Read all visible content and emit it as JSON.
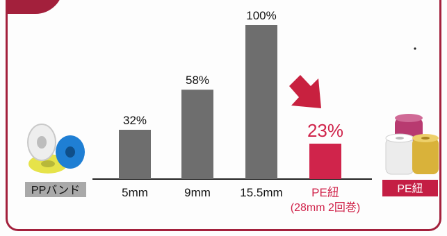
{
  "chart_data": {
    "type": "bar",
    "categories": [
      "5mm",
      "9mm",
      "15.5mm",
      "PE紐"
    ],
    "category_notes": [
      "",
      "",
      "",
      "(28mm 2回巻)"
    ],
    "values": [
      32,
      58,
      100,
      23
    ],
    "value_labels": [
      "32%",
      "58%",
      "100%",
      "23%"
    ],
    "ylim": [
      0,
      100
    ],
    "grid": false,
    "bar_colors": [
      "#6e6e6e",
      "#6e6e6e",
      "#6e6e6e",
      "#d0244b"
    ],
    "highlight_color": "#d0244b"
  },
  "labels": {
    "left_product": "PPバンド",
    "right_product": "PE紐"
  },
  "colors": {
    "frame": "#a3203c",
    "arrow": "#c8213f",
    "pp_label_bg": "#a9a9a9",
    "pe_label_bg": "#c41e44"
  },
  "images": {
    "left": "pp-band-rolls-icon",
    "right": "pe-twine-rolls-icon"
  }
}
